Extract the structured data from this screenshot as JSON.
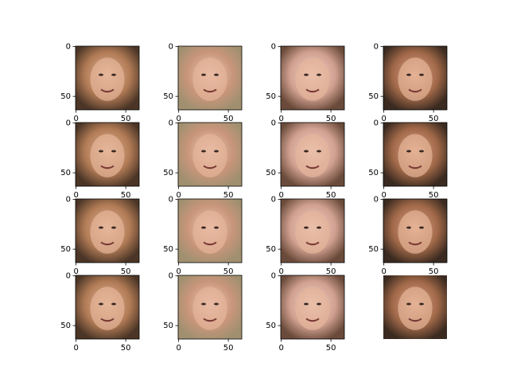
{
  "chart_data": [
    {
      "type": "image",
      "xlim": [
        -0.5,
        63.5
      ],
      "ylim": [
        63.5,
        -0.5
      ],
      "xticks": [
        0,
        50
      ],
      "yticks": [
        0,
        50
      ]
    },
    {
      "type": "image",
      "xlim": [
        -0.5,
        63.5
      ],
      "ylim": [
        63.5,
        -0.5
      ],
      "xticks": [
        0,
        50
      ],
      "yticks": [
        0,
        50
      ]
    },
    {
      "type": "image",
      "xlim": [
        -0.5,
        63.5
      ],
      "ylim": [
        63.5,
        -0.5
      ],
      "xticks": [
        0,
        50
      ],
      "yticks": [
        0,
        50
      ]
    },
    {
      "type": "image",
      "xlim": [
        -0.5,
        63.5
      ],
      "ylim": [
        63.5,
        -0.5
      ],
      "xticks": [
        0,
        50
      ],
      "yticks": [
        0,
        50
      ]
    },
    {
      "type": "image",
      "xlim": [
        -0.5,
        63.5
      ],
      "ylim": [
        63.5,
        -0.5
      ],
      "xticks": [
        0,
        50
      ],
      "yticks": [
        0,
        50
      ]
    },
    {
      "type": "image",
      "xlim": [
        -0.5,
        63.5
      ],
      "ylim": [
        63.5,
        -0.5
      ],
      "xticks": [
        0,
        50
      ],
      "yticks": [
        0,
        50
      ]
    },
    {
      "type": "image",
      "xlim": [
        -0.5,
        63.5
      ],
      "ylim": [
        63.5,
        -0.5
      ],
      "xticks": [
        0,
        50
      ],
      "yticks": [
        0,
        50
      ]
    },
    {
      "type": "image",
      "xlim": [
        -0.5,
        63.5
      ],
      "ylim": [
        63.5,
        -0.5
      ],
      "xticks": [
        0,
        50
      ],
      "yticks": [
        0,
        50
      ]
    },
    {
      "type": "image",
      "xlim": [
        -0.5,
        63.5
      ],
      "ylim": [
        63.5,
        -0.5
      ],
      "xticks": [
        0,
        50
      ],
      "yticks": [
        0,
        50
      ]
    },
    {
      "type": "image",
      "xlim": [
        -0.5,
        63.5
      ],
      "ylim": [
        63.5,
        -0.5
      ],
      "xticks": [
        0,
        50
      ],
      "yticks": [
        0,
        50
      ]
    },
    {
      "type": "image",
      "xlim": [
        -0.5,
        63.5
      ],
      "ylim": [
        63.5,
        -0.5
      ],
      "xticks": [
        0,
        50
      ],
      "yticks": [
        0,
        50
      ]
    },
    {
      "type": "image",
      "xlim": [
        -0.5,
        63.5
      ],
      "ylim": [
        63.5,
        -0.5
      ],
      "xticks": [
        0,
        50
      ],
      "yticks": [
        0,
        50
      ]
    },
    {
      "type": "image",
      "xlim": [
        -0.5,
        63.5
      ],
      "ylim": [
        63.5,
        -0.5
      ],
      "xticks": [
        0,
        50
      ],
      "yticks": [
        0,
        50
      ]
    },
    {
      "type": "image",
      "xlim": [
        -0.5,
        63.5
      ],
      "ylim": [
        63.5,
        -0.5
      ],
      "xticks": [
        0,
        50
      ],
      "yticks": [
        0,
        50
      ]
    },
    {
      "type": "image",
      "xlim": [
        -0.5,
        63.5
      ],
      "ylim": [
        63.5,
        -0.5
      ],
      "xticks": [
        0,
        50
      ],
      "yticks": [
        0,
        50
      ]
    },
    {
      "type": "image",
      "axis": false
    }
  ]
}
